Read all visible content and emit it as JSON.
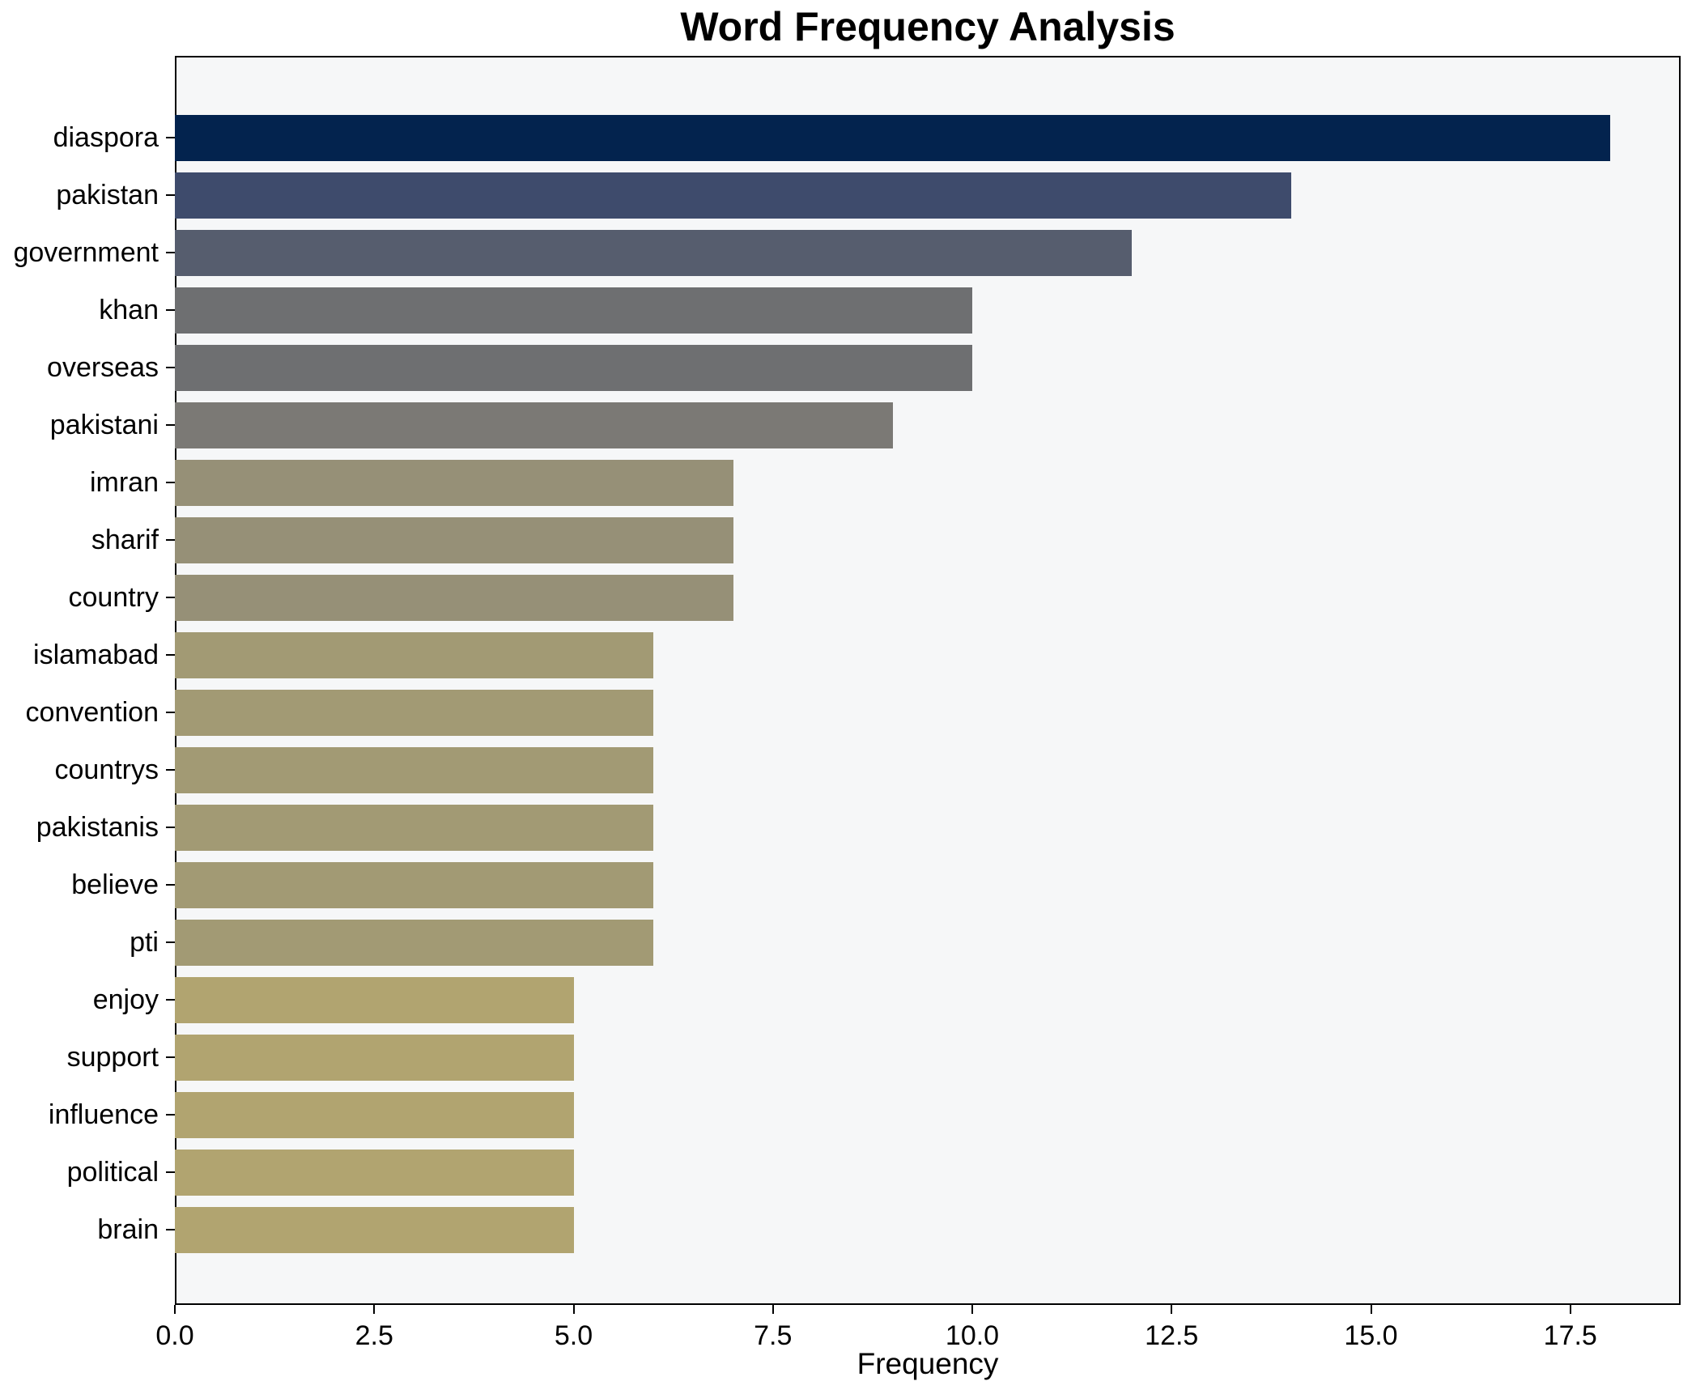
{
  "chart_data": {
    "type": "bar",
    "orientation": "horizontal",
    "title": "Word Frequency Analysis",
    "xlabel": "Frequency",
    "ylabel": "",
    "grid": false,
    "legend": null,
    "figure_bg": "#ffffff",
    "plot_bg": "#f6f7f8",
    "spine_color": "#000000",
    "xlim": [
      0,
      18.88
    ],
    "x_ticks": [
      0,
      2.5,
      5,
      7.5,
      10,
      12.5,
      15,
      17.5
    ],
    "x_tick_labels": [
      "0.0",
      "2.5",
      "5.0",
      "7.5",
      "10.0",
      "12.5",
      "15.0",
      "17.5"
    ],
    "categories": [
      "diaspora",
      "pakistan",
      "government",
      "khan",
      "overseas",
      "pakistani",
      "imran",
      "sharif",
      "country",
      "islamabad",
      "convention",
      "countrys",
      "pakistanis",
      "believe",
      "pti",
      "enjoy",
      "support",
      "influence",
      "political",
      "brain"
    ],
    "values": [
      18,
      14,
      12,
      10,
      10,
      9,
      7,
      7,
      7,
      6,
      6,
      6,
      6,
      6,
      6,
      5,
      5,
      5,
      5,
      5
    ],
    "bar_colors": [
      "#03234e",
      "#3e4b6c",
      "#565d6e",
      "#6e6f71",
      "#6e6f71",
      "#7b7975",
      "#969077",
      "#969077",
      "#969077",
      "#a29a74",
      "#a29a74",
      "#a29a74",
      "#a29a74",
      "#a29a74",
      "#a29a74",
      "#b1a470",
      "#b1a470",
      "#b1a470",
      "#b1a470",
      "#b1a470"
    ]
  }
}
